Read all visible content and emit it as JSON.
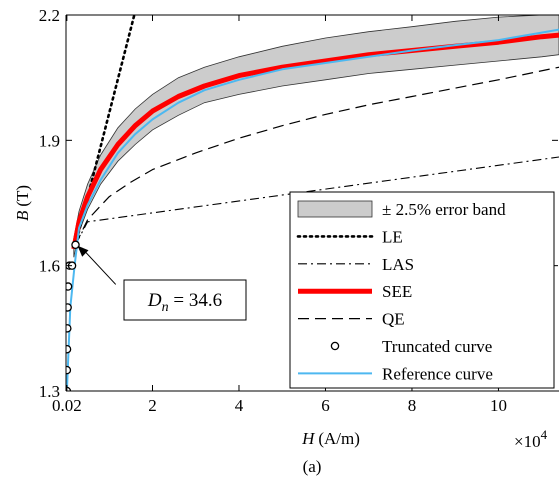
{
  "chart_data": {
    "type": "line",
    "xlabel": {
      "main": "H",
      "unit": "(A/m)"
    },
    "ylabel": {
      "main": "B",
      "unit": "(T)"
    },
    "xlim": [
      0,
      114000
    ],
    "ylim": [
      1.3,
      2.2
    ],
    "x_ticks": [
      200,
      20000,
      40000,
      60000,
      80000,
      100000
    ],
    "x_tick_labels": [
      "0.02",
      "2",
      "4",
      "6",
      "8",
      "10"
    ],
    "y_ticks": [
      1.3,
      1.6,
      1.9,
      2.2
    ],
    "y_tick_labels": [
      "1.3",
      "1.6",
      "1.9",
      "2.2"
    ],
    "x_exponent": {
      "base": "×10",
      "power": "4"
    },
    "panel_label": "(a)",
    "annotation": {
      "symbol": "D",
      "subscript": "n",
      "value_text": " = 34.6",
      "target": {
        "x": 2200,
        "y": 1.65
      },
      "box_anchor": {
        "x": 11500,
        "y": 1.555
      }
    },
    "legend": {
      "position": "lower-right",
      "entries": [
        {
          "key": "band",
          "label": "± 2.5% error band"
        },
        {
          "key": "LE",
          "label": "LE"
        },
        {
          "key": "LAS",
          "label": "LAS"
        },
        {
          "key": "SEE",
          "label": "SEE"
        },
        {
          "key": "QE",
          "label": "QE"
        },
        {
          "key": "truncated",
          "label": "Truncated curve"
        },
        {
          "key": "reference",
          "label": "Reference curve"
        }
      ]
    },
    "colors": {
      "band_fill": "#cccccc",
      "band_edge": "#333333",
      "SEE": "#ff0000",
      "reference": "#4db8f0",
      "black": "#000000"
    },
    "series": [
      {
        "name": "LE",
        "style": "dotted",
        "x": [
          2200,
          15800
        ],
        "y": [
          1.65,
          2.2
        ]
      },
      {
        "name": "LAS",
        "style": "dashdot",
        "x": [
          2200,
          5000,
          114000
        ],
        "y": [
          1.65,
          1.705,
          1.86
        ]
      },
      {
        "name": "SEE",
        "style": "thick",
        "x": [
          1800,
          3000,
          5000,
          8000,
          12000,
          16000,
          20000,
          26000,
          32000,
          40000,
          50000,
          60000,
          70000,
          80000,
          90000,
          100000,
          110000,
          114000
        ],
        "y": [
          1.64,
          1.705,
          1.765,
          1.83,
          1.89,
          1.935,
          1.97,
          2.005,
          2.03,
          2.055,
          2.075,
          2.09,
          2.105,
          2.115,
          2.125,
          2.135,
          2.148,
          2.152
        ]
      },
      {
        "name": "QE",
        "style": "dashed",
        "x": [
          2200,
          5000,
          10000,
          15000,
          20000,
          30000,
          40000,
          50000,
          60000,
          70000,
          80000,
          90000,
          100000,
          114000
        ],
        "y": [
          1.65,
          1.71,
          1.765,
          1.8,
          1.83,
          1.87,
          1.905,
          1.935,
          1.962,
          1.985,
          2.005,
          2.025,
          2.045,
          2.075
        ]
      },
      {
        "name": "Reference curve",
        "style": "solid",
        "x": [
          200,
          1000,
          2000,
          3000,
          5000,
          8000,
          12000,
          16000,
          20000,
          26000,
          32000,
          40000,
          50000,
          60000,
          70000,
          80000,
          90000,
          100000,
          114000
        ],
        "y": [
          1.3,
          1.5,
          1.6,
          1.69,
          1.745,
          1.805,
          1.87,
          1.915,
          1.95,
          1.99,
          2.02,
          2.045,
          2.07,
          2.085,
          2.1,
          2.115,
          2.128,
          2.14,
          2.165
        ]
      },
      {
        "name": "Truncated curve",
        "style": "markers",
        "x": [
          200,
          200,
          240,
          300,
          380,
          480,
          800,
          1400,
          2200
        ],
        "y": [
          1.3,
          1.35,
          1.4,
          1.45,
          1.5,
          1.55,
          1.6,
          1.6,
          1.65
        ]
      }
    ],
    "band": {
      "name": "± 2.5% error band",
      "x": [
        1800,
        3000,
        5000,
        8000,
        12000,
        16000,
        20000,
        26000,
        32000,
        40000,
        50000,
        60000,
        70000,
        80000,
        90000,
        100000,
        110000,
        114000
      ],
      "upper": [
        1.665,
        1.73,
        1.795,
        1.865,
        1.93,
        1.975,
        2.01,
        2.05,
        2.075,
        2.1,
        2.125,
        2.145,
        2.16,
        2.172,
        2.185,
        2.195,
        2.2,
        2.2
      ],
      "lower": [
        1.62,
        1.68,
        1.735,
        1.795,
        1.85,
        1.89,
        1.925,
        1.96,
        1.99,
        2.01,
        2.03,
        2.045,
        2.06,
        2.07,
        2.08,
        2.09,
        2.1,
        2.105
      ]
    }
  }
}
